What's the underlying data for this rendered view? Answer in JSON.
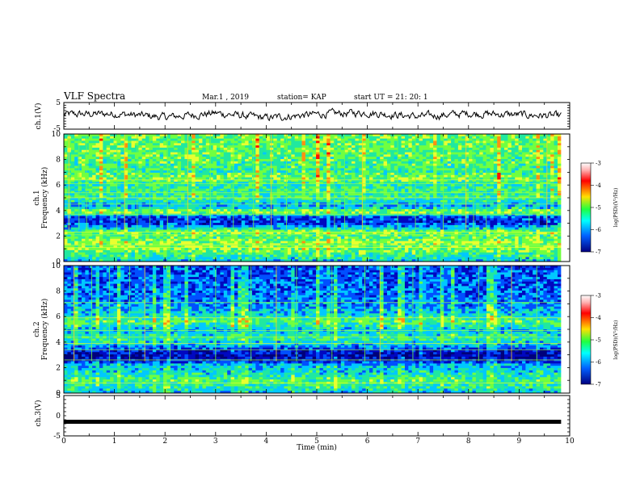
{
  "header": {
    "title": "VLF Spectra",
    "date": "Mar.1  , 2019",
    "station": "station= KAP",
    "start_ut": "start  UT  =   21: 20: 1"
  },
  "colorbar": {
    "label": "log(PSD)(V²/Hz)",
    "ticks": [
      "-3",
      "-4",
      "-5",
      "-6",
      "-7"
    ],
    "colors": [
      "#ffffff",
      "#ff0000",
      "#ffe000",
      "#20ff40",
      "#00ffff",
      "#0060ff",
      "#000080"
    ]
  },
  "chart_data": [
    {
      "type": "line",
      "panel": "ch1-waveform",
      "ylabel": "ch.1(V)",
      "ylim": [
        -5,
        5
      ],
      "yticks": [
        "5",
        "-5"
      ],
      "xlim": [
        0,
        9.83
      ],
      "series": [
        {
          "color": "#000000",
          "trend_x": [
            0,
            1,
            2,
            3,
            4,
            5,
            6,
            7,
            8,
            9,
            9.8
          ],
          "trend_y": [
            0.5,
            0.8,
            -0.5,
            1.0,
            -0.8,
            0.6,
            1.2,
            -0.3,
            0.9,
            0.4,
            -0.1
          ]
        }
      ]
    },
    {
      "type": "heatmap",
      "panel": "ch1-spectrogram",
      "ylabel": "ch.1\nFrequency  (kHz)",
      "ylim": [
        0,
        10
      ],
      "yticks": [
        "0",
        "2",
        "4",
        "6",
        "8",
        "10"
      ],
      "xlim": [
        0,
        9.83
      ],
      "zlim": [
        -7,
        -3
      ],
      "colors": [
        "#00007a",
        "#0008c0",
        "#0050ff",
        "#00c8ff",
        "#20e8a0",
        "#70ff40",
        "#e8ff30",
        "#ff9010",
        "#ff1000"
      ],
      "band_profile": [
        [
          0.0,
          3.0
        ],
        [
          0.5,
          4.2
        ],
        [
          1.0,
          5.0
        ],
        [
          1.5,
          5.3
        ],
        [
          2.0,
          4.4
        ],
        [
          2.3,
          5.2
        ],
        [
          2.6,
          3.4
        ],
        [
          3.0,
          1.4
        ],
        [
          3.5,
          1.8
        ],
        [
          3.9,
          5.6
        ],
        [
          4.3,
          2.6
        ],
        [
          4.8,
          3.8
        ],
        [
          5.3,
          4.3
        ],
        [
          6.0,
          3.9
        ],
        [
          6.6,
          5.0
        ],
        [
          7.0,
          4.2
        ],
        [
          8.0,
          4.6
        ],
        [
          9.0,
          4.7
        ],
        [
          10.0,
          4.8
        ]
      ],
      "tones_khz": [
        1.1,
        1.3,
        2.1,
        2.3,
        3.7,
        4.5,
        5.0,
        5.4,
        6.1,
        6.4
      ],
      "burst_min": [
        0.1,
        0.3,
        0.45,
        1.05,
        1.2,
        1.45,
        1.7,
        2.05,
        2.45,
        2.9,
        3.35,
        3.75,
        4.1,
        4.4,
        5.35,
        5.55,
        5.9,
        6.6,
        6.95,
        7.5,
        7.95,
        8.1,
        8.35,
        9.2,
        9.55
      ]
    },
    {
      "type": "heatmap",
      "panel": "ch2-spectrogram",
      "ylabel": "ch.2\nFrequency  (kHz)",
      "ylim": [
        0,
        10
      ],
      "yticks": [
        "0",
        "2",
        "4",
        "6",
        "8",
        "10"
      ],
      "xlim": [
        0,
        9.83
      ],
      "zlim": [
        -7,
        -3
      ],
      "colors": [
        "#00007a",
        "#0008c0",
        "#0050ff",
        "#00c8ff",
        "#20e8a0",
        "#70ff40",
        "#e8ff30",
        "#ff9010",
        "#ff1000"
      ],
      "band_profile": [
        [
          0.0,
          3.0
        ],
        [
          0.5,
          4.0
        ],
        [
          1.0,
          4.5
        ],
        [
          1.6,
          3.5
        ],
        [
          2.2,
          3.0
        ],
        [
          2.5,
          1.2
        ],
        [
          2.9,
          0.6
        ],
        [
          3.3,
          1.0
        ],
        [
          3.8,
          3.2
        ],
        [
          4.3,
          4.0
        ],
        [
          5.0,
          3.0
        ],
        [
          5.6,
          4.6
        ],
        [
          6.2,
          3.2
        ],
        [
          6.8,
          2.6
        ],
        [
          7.5,
          2.3
        ],
        [
          8.5,
          2.0
        ],
        [
          10.0,
          1.8
        ]
      ],
      "tones_khz": [
        0.8,
        2.6,
        3.4,
        3.9,
        4.4,
        4.9,
        5.9,
        7.1
      ],
      "burst_min": [
        0.2,
        0.55,
        0.9,
        1.3,
        1.6,
        2.1,
        3.0,
        3.7,
        4.2,
        4.6,
        5.3,
        5.95,
        6.25,
        6.9,
        7.45,
        8.2,
        8.85,
        9.35
      ]
    },
    {
      "type": "line",
      "panel": "ch3-waveform",
      "ylabel": "ch.3(V)",
      "ylim": [
        -5,
        5
      ],
      "yticks": [
        "5",
        "0",
        "-5"
      ],
      "xlim": [
        0,
        9.83
      ],
      "series": [
        {
          "color": "#000000",
          "x": [
            0,
            9.83
          ],
          "y": [
            -1.5,
            -1.5
          ]
        }
      ]
    }
  ],
  "xaxis": {
    "label": "Time  (min)",
    "ticks": [
      "0",
      "1",
      "2",
      "3",
      "4",
      "5",
      "6",
      "7",
      "8",
      "9",
      "10"
    ],
    "xlim": [
      0,
      10
    ]
  }
}
